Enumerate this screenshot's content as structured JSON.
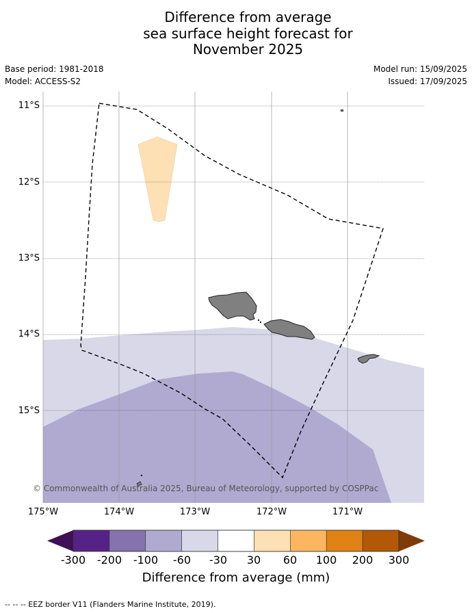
{
  "title": {
    "line1": "Difference from average",
    "line2": "sea surface height forecast for",
    "line3": "November 2025"
  },
  "meta": {
    "base_period": "Base period: 1981-2018",
    "model": "Model: ACCESS-S2",
    "model_run": "Model run: 15/09/2025",
    "issued": "Issued: 17/09/2025"
  },
  "map": {
    "lon_range": [
      -175,
      -170
    ],
    "lat_range": [
      -16.2,
      -10.8
    ],
    "lat_ticks": [
      {
        "value": -11,
        "label": "11°S"
      },
      {
        "value": -12,
        "label": "12°S"
      },
      {
        "value": -13,
        "label": "13°S"
      },
      {
        "value": -14,
        "label": "14°S"
      },
      {
        "value": -15,
        "label": "15°S"
      }
    ],
    "lon_ticks": [
      {
        "value": -175,
        "label": "175°W"
      },
      {
        "value": -174,
        "label": "174°W"
      },
      {
        "value": -173,
        "label": "173°W"
      },
      {
        "value": -172,
        "label": "172°W"
      },
      {
        "value": -171,
        "label": "171°W"
      }
    ],
    "colors": {
      "ocean_neutral": "#ffffff",
      "band_minus60_minus30": "#d8d8e9",
      "band_minus100_minus60": "#b0a9d0",
      "band_30_60": "#fde0b4",
      "land": "#808080"
    },
    "copyright": "© Commonwealth of Australia 2025, Bureau of Meteorology, supported by COSPPac"
  },
  "colorbar": {
    "title": "Difference from average (mm)",
    "ticks": [
      "-300",
      "-200",
      "-100",
      "-60",
      "-30",
      "30",
      "60",
      "100",
      "200",
      "300"
    ],
    "colors": [
      "#3f0f57",
      "#562287",
      "#8473ad",
      "#b0a9d0",
      "#d8d8e9",
      "#ffffff",
      "#fde0b4",
      "#fbb65f",
      "#e08214",
      "#b35806",
      "#7f3b08"
    ]
  },
  "footer": "--  --  -- EEZ border V11 (Flanders Marine Institute, 2019)."
}
